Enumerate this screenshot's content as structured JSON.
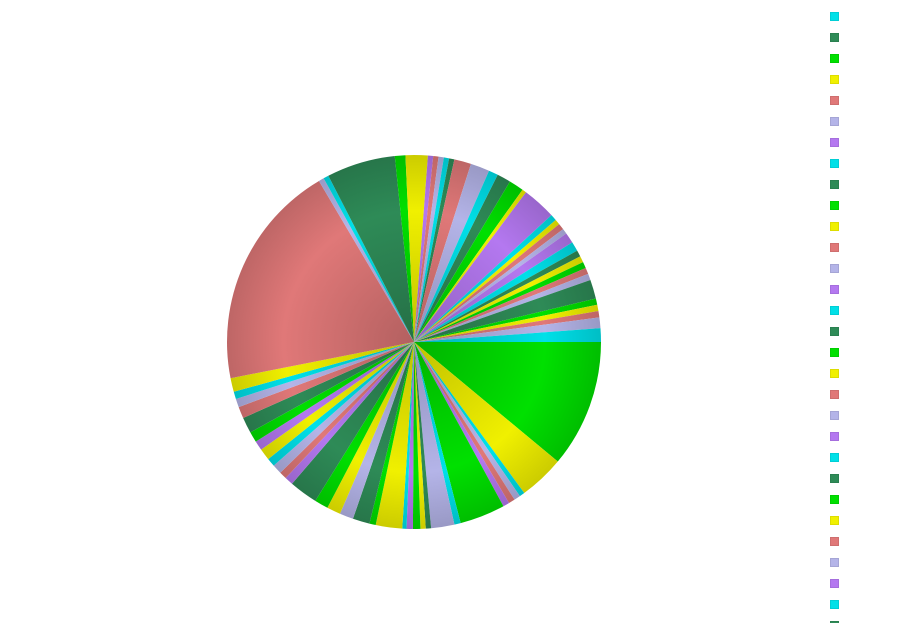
{
  "chart_data": {
    "type": "pie",
    "title": "",
    "palette": [
      "#00e0e8",
      "#2e8b57",
      "#00e000",
      "#f0f000",
      "#e07878",
      "#b4b4e8",
      "#b478f0"
    ],
    "start_angle_deg": 0,
    "direction": "clockwise",
    "slices": [
      {
        "label": "",
        "value": 12.1,
        "color": "#00e000"
      },
      {
        "label": "",
        "value": 4.3,
        "color": "#f0f000"
      },
      {
        "label": "",
        "value": 0.5,
        "color": "#00e0e8"
      },
      {
        "label": "",
        "value": 0.6,
        "color": "#b4b4e8"
      },
      {
        "label": "",
        "value": 0.6,
        "color": "#e07878"
      },
      {
        "label": "",
        "value": 0.6,
        "color": "#b478f0"
      },
      {
        "label": "",
        "value": 4.3,
        "color": "#00e000"
      },
      {
        "label": "",
        "value": 0.6,
        "color": "#00e0e8"
      },
      {
        "label": "",
        "value": 2.2,
        "color": "#b4b4e8"
      },
      {
        "label": "",
        "value": 0.5,
        "color": "#2e8b57"
      },
      {
        "label": "",
        "value": 0.5,
        "color": "#f0f000"
      },
      {
        "label": "",
        "value": 0.7,
        "color": "#00e000"
      },
      {
        "label": "",
        "value": 0.6,
        "color": "#b478f0"
      },
      {
        "label": "",
        "value": 0.4,
        "color": "#00e0e8"
      },
      {
        "label": "",
        "value": 2.5,
        "color": "#f0f000"
      },
      {
        "label": "",
        "value": 0.6,
        "color": "#00e000"
      },
      {
        "label": "",
        "value": 1.6,
        "color": "#2e8b57"
      },
      {
        "label": "",
        "value": 1.3,
        "color": "#b4b4e8"
      },
      {
        "label": "",
        "value": 1.3,
        "color": "#f0f000"
      },
      {
        "label": "",
        "value": 1.3,
        "color": "#00e000"
      },
      {
        "label": "",
        "value": 2.7,
        "color": "#2e8b57"
      },
      {
        "label": "",
        "value": 0.8,
        "color": "#b478f0"
      },
      {
        "label": "",
        "value": 0.7,
        "color": "#e07878"
      },
      {
        "label": "",
        "value": 0.9,
        "color": "#b4b4e8"
      },
      {
        "label": "",
        "value": 0.8,
        "color": "#00e0e8"
      },
      {
        "label": "",
        "value": 1.1,
        "color": "#f0f000"
      },
      {
        "label": "",
        "value": 0.9,
        "color": "#b478f0"
      },
      {
        "label": "",
        "value": 1.0,
        "color": "#00e000"
      },
      {
        "label": "",
        "value": 1.5,
        "color": "#2e8b57"
      },
      {
        "label": "",
        "value": 1.1,
        "color": "#e07878"
      },
      {
        "label": "",
        "value": 0.8,
        "color": "#b4b4e8"
      },
      {
        "label": "",
        "value": 0.7,
        "color": "#00e0e8"
      },
      {
        "label": "",
        "value": 1.3,
        "color": "#f0f000"
      },
      {
        "label": "",
        "value": 21.5,
        "color": "#e07878"
      },
      {
        "label": "",
        "value": 0.5,
        "color": "#b4b4e8"
      },
      {
        "label": "",
        "value": 0.5,
        "color": "#00e0e8"
      },
      {
        "label": "",
        "value": 6.5,
        "color": "#2e8b57"
      },
      {
        "label": "",
        "value": 1.0,
        "color": "#00e000"
      },
      {
        "label": "",
        "value": 2.1,
        "color": "#f0f000"
      },
      {
        "label": "",
        "value": 0.5,
        "color": "#b478f0"
      },
      {
        "label": "",
        "value": 0.5,
        "color": "#e07878"
      },
      {
        "label": "",
        "value": 0.5,
        "color": "#b4b4e8"
      },
      {
        "label": "",
        "value": 0.5,
        "color": "#00e0e8"
      },
      {
        "label": "",
        "value": 0.5,
        "color": "#2e8b57"
      },
      {
        "label": "",
        "value": 1.6,
        "color": "#e07878"
      },
      {
        "label": "",
        "value": 1.8,
        "color": "#b4b4e8"
      },
      {
        "label": "",
        "value": 0.9,
        "color": "#00e0e8"
      },
      {
        "label": "",
        "value": 1.3,
        "color": "#2e8b57"
      },
      {
        "label": "",
        "value": 1.4,
        "color": "#00e000"
      },
      {
        "label": "",
        "value": 0.4,
        "color": "#f0f000"
      },
      {
        "label": "",
        "value": 3.2,
        "color": "#b478f0"
      },
      {
        "label": "",
        "value": 0.6,
        "color": "#00e0e8"
      },
      {
        "label": "",
        "value": 0.5,
        "color": "#f0f000"
      },
      {
        "label": "",
        "value": 0.6,
        "color": "#e07878"
      },
      {
        "label": "",
        "value": 0.5,
        "color": "#b4b4e8"
      },
      {
        "label": "",
        "value": 1.0,
        "color": "#b478f0"
      },
      {
        "label": "",
        "value": 0.9,
        "color": "#00e0e8"
      },
      {
        "label": "",
        "value": 0.6,
        "color": "#2e8b57"
      },
      {
        "label": "",
        "value": 0.6,
        "color": "#f0f000"
      },
      {
        "label": "",
        "value": 0.6,
        "color": "#00e000"
      },
      {
        "label": "",
        "value": 0.6,
        "color": "#e07878"
      },
      {
        "label": "",
        "value": 0.6,
        "color": "#b4b4e8"
      },
      {
        "label": "",
        "value": 1.8,
        "color": "#2e8b57"
      },
      {
        "label": "",
        "value": 0.6,
        "color": "#00e000"
      },
      {
        "label": "",
        "value": 0.6,
        "color": "#f0f000"
      },
      {
        "label": "",
        "value": 0.6,
        "color": "#e07878"
      },
      {
        "label": "",
        "value": 1.0,
        "color": "#b4b4e8"
      },
      {
        "label": "",
        "value": 1.3,
        "color": "#00e0e8"
      }
    ],
    "legend": {
      "placement": "right",
      "entries": [
        {
          "label": "",
          "color": "#00e0e8"
        },
        {
          "label": "",
          "color": "#2e8b57"
        },
        {
          "label": "",
          "color": "#00e000"
        },
        {
          "label": "",
          "color": "#f0f000"
        },
        {
          "label": "",
          "color": "#e07878"
        },
        {
          "label": "",
          "color": "#b4b4e8"
        },
        {
          "label": "",
          "color": "#b478f0"
        },
        {
          "label": "",
          "color": "#00e0e8"
        },
        {
          "label": "",
          "color": "#2e8b57"
        },
        {
          "label": "",
          "color": "#00e000"
        },
        {
          "label": "",
          "color": "#f0f000"
        },
        {
          "label": "",
          "color": "#e07878"
        },
        {
          "label": "",
          "color": "#b4b4e8"
        },
        {
          "label": "",
          "color": "#b478f0"
        },
        {
          "label": "",
          "color": "#00e0e8"
        },
        {
          "label": "",
          "color": "#2e8b57"
        },
        {
          "label": "",
          "color": "#00e000"
        },
        {
          "label": "",
          "color": "#f0f000"
        },
        {
          "label": "",
          "color": "#e07878"
        },
        {
          "label": "",
          "color": "#b4b4e8"
        },
        {
          "label": "",
          "color": "#b478f0"
        },
        {
          "label": "",
          "color": "#00e0e8"
        },
        {
          "label": "",
          "color": "#2e8b57"
        },
        {
          "label": "",
          "color": "#00e000"
        },
        {
          "label": "",
          "color": "#f0f000"
        },
        {
          "label": "",
          "color": "#e07878"
        },
        {
          "label": "",
          "color": "#b4b4e8"
        },
        {
          "label": "",
          "color": "#b478f0"
        },
        {
          "label": "",
          "color": "#00e0e8"
        },
        {
          "label": "",
          "color": "#2e8b57"
        }
      ]
    }
  }
}
